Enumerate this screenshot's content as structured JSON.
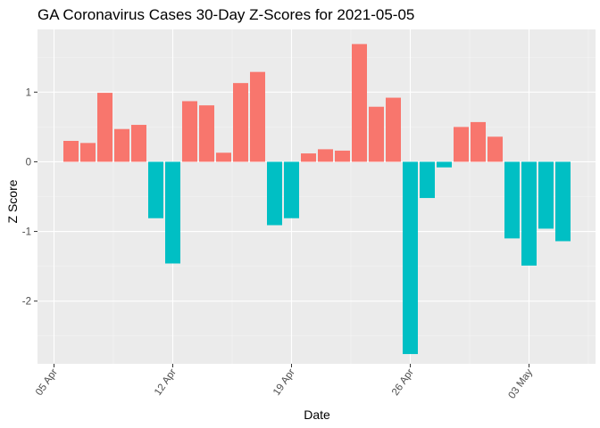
{
  "chart_data": {
    "type": "bar",
    "title": "GA Coronavirus Cases 30-Day Z-Scores for 2021-05-05",
    "xlabel": "Date",
    "ylabel": "Z Score",
    "ylim": [
      -2.9,
      1.9
    ],
    "grid": true,
    "legend": "none",
    "x_ticks": [
      "05 Apr",
      "12 Apr",
      "19 Apr",
      "26 Apr",
      "03 May"
    ],
    "y_ticks": [
      -2,
      -1,
      0,
      1
    ],
    "y_tick_labels": [
      "-2",
      "-1",
      "0",
      "1"
    ],
    "colors": {
      "positive": "#F8766D",
      "negative": "#00BFC4",
      "panel": "#EBEBEB",
      "grid_major": "#FFFFFF",
      "grid_minor": "#F5F5F5"
    },
    "categories": [
      "2021-04-06",
      "2021-04-07",
      "2021-04-08",
      "2021-04-09",
      "2021-04-10",
      "2021-04-11",
      "2021-04-12",
      "2021-04-13",
      "2021-04-14",
      "2021-04-15",
      "2021-04-16",
      "2021-04-17",
      "2021-04-18",
      "2021-04-19",
      "2021-04-20",
      "2021-04-21",
      "2021-04-22",
      "2021-04-23",
      "2021-04-24",
      "2021-04-25",
      "2021-04-26",
      "2021-04-27",
      "2021-04-28",
      "2021-04-29",
      "2021-04-30",
      "2021-05-01",
      "2021-05-02",
      "2021-05-03",
      "2021-05-04",
      "2021-05-05"
    ],
    "values": [
      0.3,
      0.27,
      0.99,
      0.47,
      0.53,
      -0.81,
      -1.46,
      0.87,
      0.81,
      0.13,
      1.13,
      1.29,
      -0.91,
      -0.81,
      0.12,
      0.18,
      0.16,
      1.69,
      0.79,
      0.92,
      -2.76,
      -0.52,
      -0.08,
      0.5,
      0.57,
      0.36,
      -1.1,
      -1.49,
      -0.96,
      -1.14
    ]
  }
}
